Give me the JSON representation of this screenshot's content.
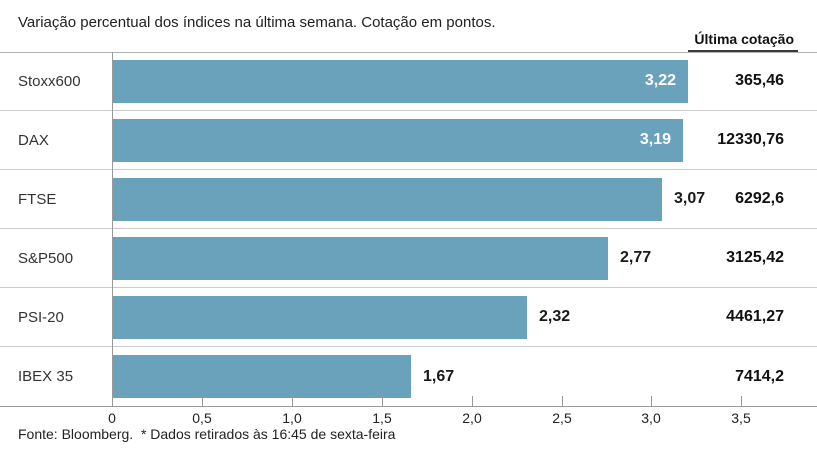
{
  "title": "Variação percentual dos índices na última semana. Cotação em pontos.",
  "quote_header": "Última cotação",
  "footer": "Fonte: Bloomberg.  * Dados retirados às 16:45 de sexta-feira",
  "colors": {
    "bar": "#6aa2bc",
    "separator": "#cccccc",
    "axis": "#999999",
    "header_underline": "#3b3b3b",
    "value_inside": "#ffffff",
    "value_outside": "#1a1a1a"
  },
  "chart_data": {
    "type": "bar",
    "orientation": "horizontal",
    "title": "Variação percentual dos índices na última semana. Cotação em pontos.",
    "categories": [
      "Stoxx600",
      "DAX",
      "FTSE",
      "S&P500",
      "PSI-20",
      "IBEX 35"
    ],
    "values": [
      3.22,
      3.19,
      3.07,
      2.77,
      2.32,
      1.67
    ],
    "value_labels": [
      "3,22",
      "3,19",
      "3,07",
      "2,77",
      "2,32",
      "1,67"
    ],
    "quotes": [
      "365,46",
      "12330,76",
      "6292,6",
      "3125,42",
      "4461,27",
      "7414,2"
    ],
    "quotes_column_header": "Última cotação",
    "x_ticks": [
      "0",
      "0,5",
      "1,0",
      "1,5",
      "2,0",
      "2,5",
      "3,0",
      "3,5"
    ],
    "xlim": [
      0,
      3.5
    ],
    "grid": "off",
    "legend": "none"
  }
}
